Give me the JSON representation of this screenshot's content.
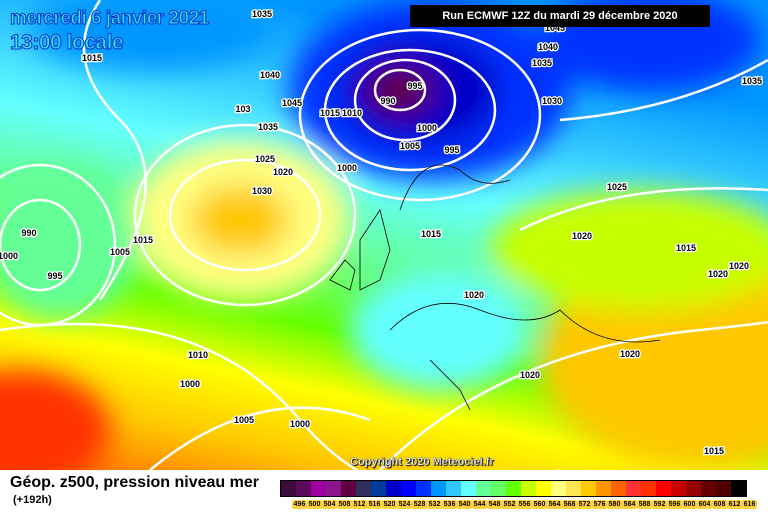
{
  "header": {
    "date": "mercredi 6 janvier 2021",
    "time": "13:00 locale",
    "run": "Run ECMWF 12Z du mardi 29 décembre 2020"
  },
  "copyright": "Copyright 2020 Meteociel.fr",
  "footer": {
    "title": "Géop. z500, pression niveau mer",
    "lead": "(+192h)"
  },
  "legend": {
    "colors": [
      "#3c0a3c",
      "#5c0a5c",
      "#a000a0",
      "#8c148c",
      "#600040",
      "#303060",
      "#003c9c",
      "#0000c8",
      "#0000ff",
      "#0032ff",
      "#0096ff",
      "#32c8ff",
      "#64ffff",
      "#64ff96",
      "#64ff64",
      "#64ff00",
      "#c8ff00",
      "#ffff00",
      "#ffff80",
      "#ffe650",
      "#ffc800",
      "#ff9600",
      "#ff6400",
      "#ff3232",
      "#ff3200",
      "#ff0000",
      "#c80000",
      "#960000",
      "#640000",
      "#500000",
      "#000000"
    ],
    "labels": [
      "496",
      "500",
      "504",
      "508",
      "512",
      "516",
      "520",
      "524",
      "528",
      "532",
      "536",
      "540",
      "544",
      "548",
      "552",
      "556",
      "560",
      "564",
      "568",
      "572",
      "576",
      "580",
      "584",
      "588",
      "592",
      "596",
      "600",
      "604",
      "608",
      "612",
      "616"
    ]
  },
  "isobar_labels": [
    "1035",
    "1015",
    "1040",
    "1045",
    "1035",
    "103",
    "1025",
    "1020",
    "1030",
    "1000",
    "1015",
    "1010",
    "995",
    "990",
    "1000",
    "1005",
    "995",
    "1040",
    "1045",
    "1035",
    "1030",
    "1035",
    "1025",
    "1020",
    "1015",
    "1020",
    "1020",
    "1015",
    "1020",
    "1020",
    "1020",
    "1015",
    "990",
    "1000",
    "995",
    "1015",
    "1005",
    "1010",
    "1000",
    "1005",
    "1000"
  ]
}
